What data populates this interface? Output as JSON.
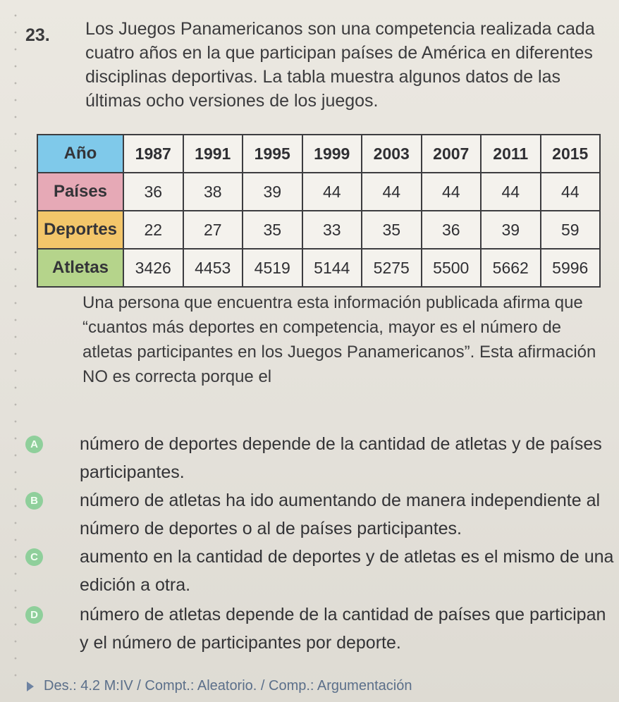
{
  "question": {
    "number": "23.",
    "stem": "Los Juegos Panamericanos son una competencia realizada cada cuatro años en la que participan países de América en diferentes disciplinas deportivas. La tabla muestra algunos datos de las últimas ocho versiones de los juegos."
  },
  "table": {
    "row_headers": [
      "Año",
      "Países",
      "Deportes",
      "Atletas"
    ],
    "years": [
      "1987",
      "1991",
      "1995",
      "1999",
      "2003",
      "2007",
      "2011",
      "2015"
    ],
    "paises": [
      "36",
      "38",
      "39",
      "44",
      "44",
      "44",
      "44",
      "44"
    ],
    "deportes": [
      "22",
      "27",
      "35",
      "33",
      "35",
      "36",
      "39",
      "59"
    ],
    "atletas": [
      "3426",
      "4453",
      "4519",
      "5144",
      "5275",
      "5500",
      "5662",
      "5996"
    ],
    "colors": {
      "anio": "#7fc9ea",
      "paises": "#e6a9b6",
      "deportes": "#f3c66a",
      "atletas": "#b5d48b"
    }
  },
  "paragraph": "Una persona que encuentra esta información publicada afirma que “cuantos más deportes en competencia, mayor es el número de atletas participantes en los Juegos Panamericanos”. Esta afirmación NO es correcta porque el",
  "options": [
    {
      "letter": "A",
      "text": "número de deportes depende de la cantidad de atletas y de países participantes."
    },
    {
      "letter": "B",
      "text": "número de atletas ha ido aumentando de manera independiente al número de deportes o al de países participantes."
    },
    {
      "letter": "C",
      "text": "aumento en la cantidad de deportes y de atletas es el mismo de una edición a otra."
    },
    {
      "letter": "D",
      "text": "número de atletas depende de la cantidad de países que participan y el número de participantes por deporte."
    }
  ],
  "footer": "Des.: 4.2 M:IV / Compt.: Aleatorio. / Comp.: Argumentación",
  "badge_color": "#8fcf9b"
}
